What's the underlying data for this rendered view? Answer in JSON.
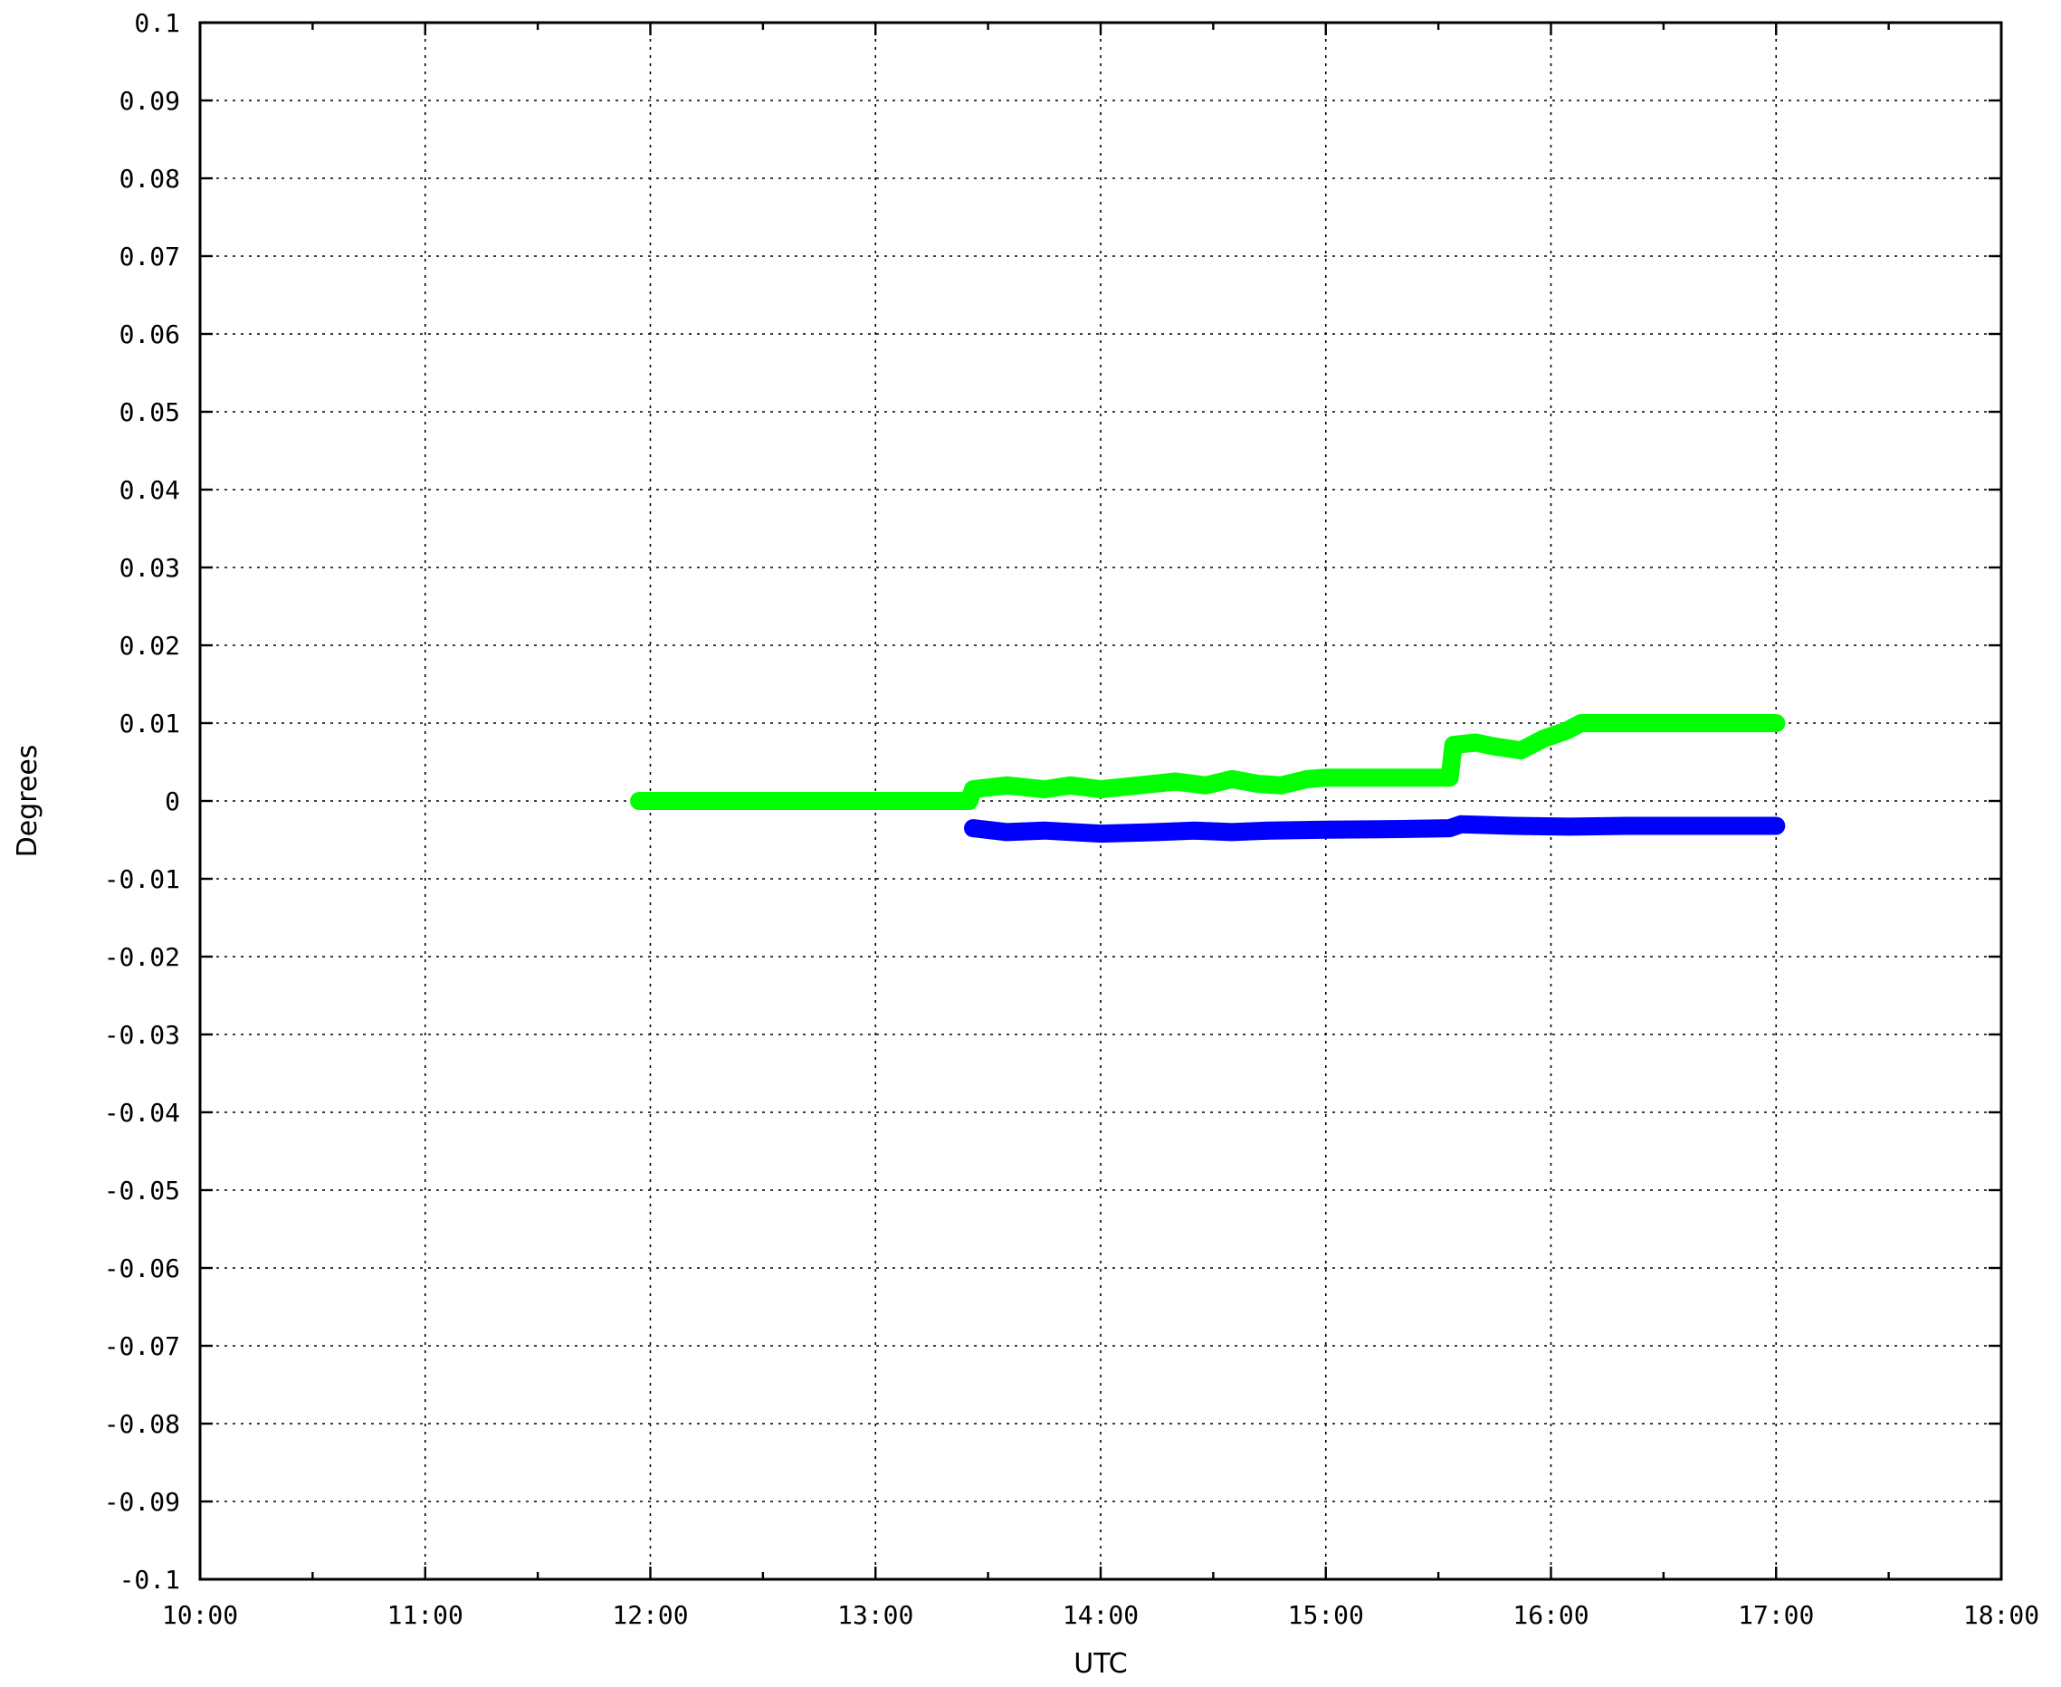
{
  "chart_data": {
    "type": "line",
    "xlabel": "UTC",
    "ylabel": "Degrees",
    "xlim": [
      "10:00",
      "18:00"
    ],
    "ylim": [
      -0.1,
      0.1
    ],
    "x_ticks": [
      "10:00",
      "11:00",
      "12:00",
      "13:00",
      "14:00",
      "15:00",
      "16:00",
      "17:00",
      "18:00"
    ],
    "y_ticks": [
      "0.1",
      "0.09",
      "0.08",
      "0.07",
      "0.06",
      "0.05",
      "0.04",
      "0.03",
      "0.02",
      "0.01",
      "0",
      "-0.01",
      "-0.02",
      "-0.03",
      "-0.04",
      "-0.05",
      "-0.06",
      "-0.07",
      "-0.08",
      "-0.09",
      "-0.1"
    ],
    "grid": true,
    "legend": "none",
    "series": [
      {
        "color": "#00ff00",
        "points": [
          [
            "11:57",
            0.0
          ],
          [
            "12:30",
            0.0
          ],
          [
            "13:00",
            0.0
          ],
          [
            "13:25",
            0.0
          ],
          [
            "13:26",
            0.0015
          ],
          [
            "13:35",
            0.002
          ],
          [
            "13:45",
            0.0015
          ],
          [
            "13:52",
            0.002
          ],
          [
            "14:00",
            0.0015
          ],
          [
            "14:10",
            0.002
          ],
          [
            "14:20",
            0.0025
          ],
          [
            "14:28",
            0.002
          ],
          [
            "14:35",
            0.0028
          ],
          [
            "14:42",
            0.0022
          ],
          [
            "14:48",
            0.002
          ],
          [
            "14:55",
            0.0028
          ],
          [
            "15:00",
            0.003
          ],
          [
            "15:15",
            0.003
          ],
          [
            "15:30",
            0.003
          ],
          [
            "15:33",
            0.003
          ],
          [
            "15:34",
            0.0072
          ],
          [
            "15:40",
            0.0075
          ],
          [
            "15:45",
            0.007
          ],
          [
            "15:52",
            0.0065
          ],
          [
            "15:58",
            0.008
          ],
          [
            "16:04",
            0.009
          ],
          [
            "16:08",
            0.01
          ],
          [
            "16:30",
            0.01
          ],
          [
            "17:00",
            0.01
          ]
        ]
      },
      {
        "color": "#0000ff",
        "points": [
          [
            "13:26",
            -0.0035
          ],
          [
            "13:35",
            -0.004
          ],
          [
            "13:45",
            -0.0038
          ],
          [
            "14:00",
            -0.0042
          ],
          [
            "14:15",
            -0.004
          ],
          [
            "14:25",
            -0.0038
          ],
          [
            "14:35",
            -0.004
          ],
          [
            "14:45",
            -0.0038
          ],
          [
            "15:00",
            -0.0037
          ],
          [
            "15:20",
            -0.0036
          ],
          [
            "15:33",
            -0.0035
          ],
          [
            "15:36",
            -0.003
          ],
          [
            "15:50",
            -0.0032
          ],
          [
            "16:05",
            -0.0033
          ],
          [
            "16:20",
            -0.0032
          ],
          [
            "17:00",
            -0.0032
          ]
        ]
      }
    ]
  }
}
